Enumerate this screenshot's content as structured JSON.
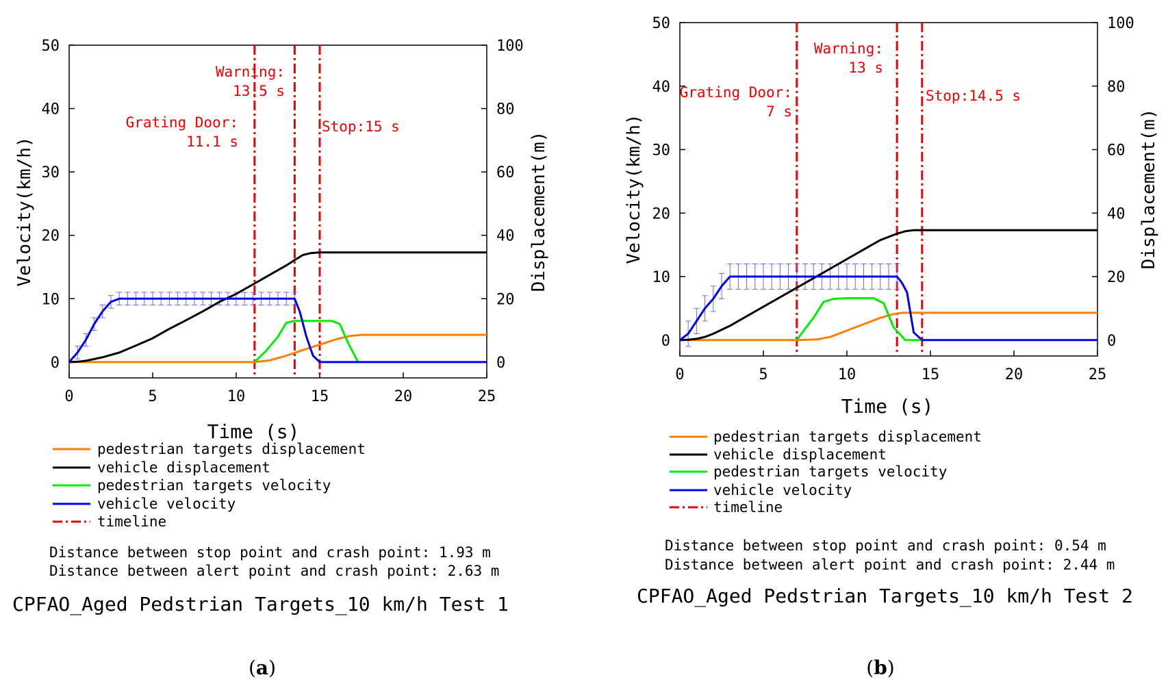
{
  "chart_data": [
    {
      "type": "line",
      "panel_label": "a",
      "title": "CPFAO_Aged Pedstrian Targets_10 km/h Test 1",
      "xlabel": "Time (s)",
      "ylabel_left": "Velocity(km/h)",
      "ylabel_right": "Displacement(m)",
      "xlim": [
        0,
        25
      ],
      "ylim_left": [
        -2.5,
        50
      ],
      "ylim_right": [
        -5,
        100
      ],
      "xticks": [
        0,
        5,
        10,
        15,
        20,
        25
      ],
      "yticks_left": [
        0,
        10,
        20,
        30,
        40,
        50
      ],
      "yticks_right": [
        0,
        20,
        40,
        60,
        80,
        100
      ],
      "series": [
        {
          "name": "pedestrian targets displacement",
          "color": "#ff8000",
          "axis": "right",
          "x": [
            0,
            11.1,
            12,
            13,
            14,
            15,
            16,
            16.8,
            17.5,
            25
          ],
          "y": [
            0,
            0,
            0.5,
            2,
            3.8,
            5.5,
            7.2,
            8.2,
            8.6,
            8.6
          ]
        },
        {
          "name": "vehicle displacement",
          "color": "#000000",
          "axis": "right",
          "x": [
            0,
            0.5,
            1,
            2,
            3,
            4,
            5,
            6,
            7,
            8,
            9,
            10,
            11,
            12,
            13,
            13.5,
            14,
            14.5,
            15,
            16,
            25
          ],
          "y": [
            0,
            0.1,
            0.4,
            1.5,
            3,
            5.2,
            7.5,
            10.5,
            13.2,
            16,
            19,
            21.5,
            24.5,
            27.5,
            30.5,
            32.2,
            33.8,
            34.4,
            34.6,
            34.6,
            34.6
          ]
        },
        {
          "name": "pedestrian targets velocity",
          "color": "#00ee00",
          "axis": "left",
          "x": [
            11.1,
            11.8,
            12.5,
            13,
            13.5,
            14,
            15,
            15.7,
            16.2,
            16.7,
            17.3
          ],
          "y": [
            0,
            1.8,
            4,
            6.2,
            6.5,
            6.5,
            6.5,
            6.5,
            6,
            3,
            0
          ]
        },
        {
          "name": "vehicle velocity",
          "color": "#0000ee",
          "axis": "left",
          "x": [
            0,
            0.5,
            1,
            1.5,
            2,
            2.5,
            3,
            13.5,
            13.8,
            14.2,
            14.6,
            15,
            25
          ],
          "y": [
            0,
            1.5,
            3.5,
            6,
            8,
            9.5,
            10,
            10,
            8,
            4,
            1,
            0,
            0
          ]
        },
        {
          "name": "timeline",
          "color": "#ee0000",
          "axis": "left",
          "style": "dash-dot",
          "x": [
            11.1,
            13.5,
            15
          ]
        }
      ],
      "annotations": [
        {
          "lines": [
            "Warning:",
            "13.5 s"
          ],
          "x": 13.5
        },
        {
          "lines": [
            "Grating Door:",
            "11.1 s"
          ],
          "x": 11.1
        },
        {
          "lines": [
            "Stop:15 s"
          ],
          "x": 15
        }
      ],
      "error_bars": {
        "series": "vehicle velocity",
        "x_from": 0.5,
        "x_to": 13.5,
        "step": 0.5,
        "err": 1
      },
      "notes": [
        "Distance between stop point and crash point: 1.93 m",
        "Distance between alert point and crash point: 2.63 m"
      ]
    },
    {
      "type": "line",
      "panel_label": "b",
      "title": "CPFAO_Aged Pedstrian Targets_10 km/h Test 2",
      "xlabel": "Time (s)",
      "ylabel_left": "Velocity(km/h)",
      "ylabel_right": "Displacement(m)",
      "xlim": [
        0,
        25
      ],
      "ylim_left": [
        -2.5,
        50
      ],
      "ylim_right": [
        -5,
        100
      ],
      "xticks": [
        0,
        5,
        10,
        15,
        20,
        25
      ],
      "yticks_left": [
        0,
        10,
        20,
        30,
        40,
        50
      ],
      "yticks_right": [
        0,
        20,
        40,
        60,
        80,
        100
      ],
      "series": [
        {
          "name": "pedestrian targets displacement",
          "color": "#ff8000",
          "axis": "right",
          "x": [
            0,
            7,
            8.2,
            9,
            10,
            11,
            12,
            12.8,
            13.3,
            25
          ],
          "y": [
            0,
            0,
            0.2,
            1,
            3,
            5,
            7,
            8.2,
            8.6,
            8.6
          ]
        },
        {
          "name": "vehicle displacement",
          "color": "#000000",
          "axis": "right",
          "x": [
            0,
            0.5,
            1,
            1.5,
            2,
            3,
            4,
            5,
            6,
            7,
            8,
            9,
            10,
            11,
            12,
            13,
            13.5,
            14,
            14.5,
            25
          ],
          "y": [
            0,
            0.1,
            0.4,
            1,
            2,
            4.5,
            7.5,
            10.5,
            13.5,
            16.5,
            19.5,
            22.5,
            25.5,
            28.5,
            31.5,
            33.5,
            34.3,
            34.6,
            34.6,
            34.6
          ]
        },
        {
          "name": "pedestrian targets velocity",
          "color": "#00ee00",
          "axis": "left",
          "x": [
            7,
            7.5,
            8,
            8.6,
            9.2,
            10,
            11,
            11.6,
            12.2,
            12.8,
            13.5,
            14.5
          ],
          "y": [
            0,
            1.8,
            3.5,
            6,
            6.5,
            6.6,
            6.6,
            6.6,
            5.8,
            2,
            0,
            0
          ]
        },
        {
          "name": "vehicle velocity",
          "color": "#0000ee",
          "axis": "left",
          "x": [
            0,
            0.5,
            1,
            1.5,
            2,
            2.5,
            3,
            13,
            13.3,
            13.6,
            14,
            14.5,
            25
          ],
          "y": [
            0,
            1,
            3,
            5,
            6.5,
            8.5,
            10,
            10,
            9,
            7.5,
            1.2,
            0,
            0
          ]
        },
        {
          "name": "timeline",
          "color": "#ee0000",
          "axis": "left",
          "style": "dash-dot",
          "x": [
            7,
            13,
            14.5
          ]
        }
      ],
      "annotations": [
        {
          "lines": [
            "Warning:",
            "13 s"
          ],
          "x": 13
        },
        {
          "lines": [
            "Grating Door:",
            "7 s"
          ],
          "x": 7
        },
        {
          "lines": [
            "Stop:14.5 s"
          ],
          "x": 14.5
        }
      ],
      "error_bars": {
        "series": "vehicle velocity",
        "x_from": 0.5,
        "x_to": 13,
        "step": 0.5,
        "err": 2
      },
      "notes": [
        "Distance between stop point and crash point: 0.54 m",
        "Distance between alert point and crash point: 2.44 m"
      ]
    }
  ],
  "colors": {
    "pedestrian_displacement": "#ff8000",
    "vehicle_displacement": "#000000",
    "pedestrian_velocity": "#00ee00",
    "vehicle_velocity": "#0000ee",
    "timeline": "#ee0000",
    "error_bar": "#6666ff"
  }
}
